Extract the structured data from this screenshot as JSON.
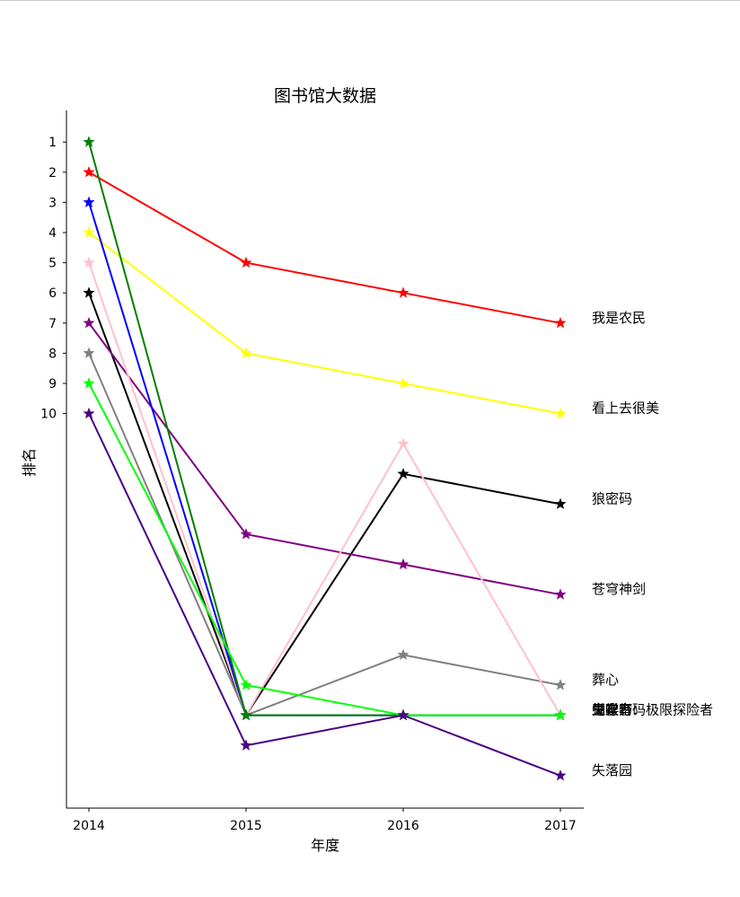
{
  "chart_data": {
    "type": "line",
    "title": "图书馆大数据",
    "xlabel": "年度",
    "ylabel": "排名",
    "x": [
      2014,
      2015,
      2016,
      2017
    ],
    "x_tick_labels": [
      "2014",
      "2015",
      "2016",
      "2017"
    ],
    "y_tick_labels": [
      "1",
      "2",
      "3",
      "4",
      "5",
      "6",
      "7",
      "8",
      "9",
      "10"
    ],
    "y_inverted": true,
    "ylim": [
      0,
      23
    ],
    "grid": false,
    "marker": "star",
    "series": [
      {
        "name": "我是农民",
        "color": "#ff0000",
        "values": [
          2,
          5,
          6,
          7
        ]
      },
      {
        "name": "看上去很美",
        "color": "#ffff00",
        "values": [
          4,
          8,
          9,
          10
        ]
      },
      {
        "name": "狼密码",
        "color": "#000000",
        "values": [
          6,
          20,
          12,
          13
        ]
      },
      {
        "name": "苍穹神剑",
        "color": "#800080",
        "values": [
          7,
          14,
          15,
          16
        ]
      },
      {
        "name": "葬心",
        "color": "#808080",
        "values": [
          8,
          20,
          18,
          19
        ]
      },
      {
        "name": "天堂鸟",
        "color": "#ffc0cb",
        "values": [
          5,
          20,
          11,
          20
        ]
      },
      {
        "name": "蝴蝶密码",
        "color": "#0000ff",
        "values": [
          3,
          20,
          20,
          20
        ]
      },
      {
        "name": "鬼吹灯",
        "color": "#008000",
        "values": [
          1,
          20,
          20,
          20
        ]
      },
      {
        "name": "生存者：极限探险者",
        "color": "#00ff00",
        "values": [
          9,
          19,
          20,
          20
        ]
      },
      {
        "name": "失落园",
        "color": "#4b0082",
        "values": [
          10,
          21,
          20,
          22
        ]
      }
    ]
  }
}
